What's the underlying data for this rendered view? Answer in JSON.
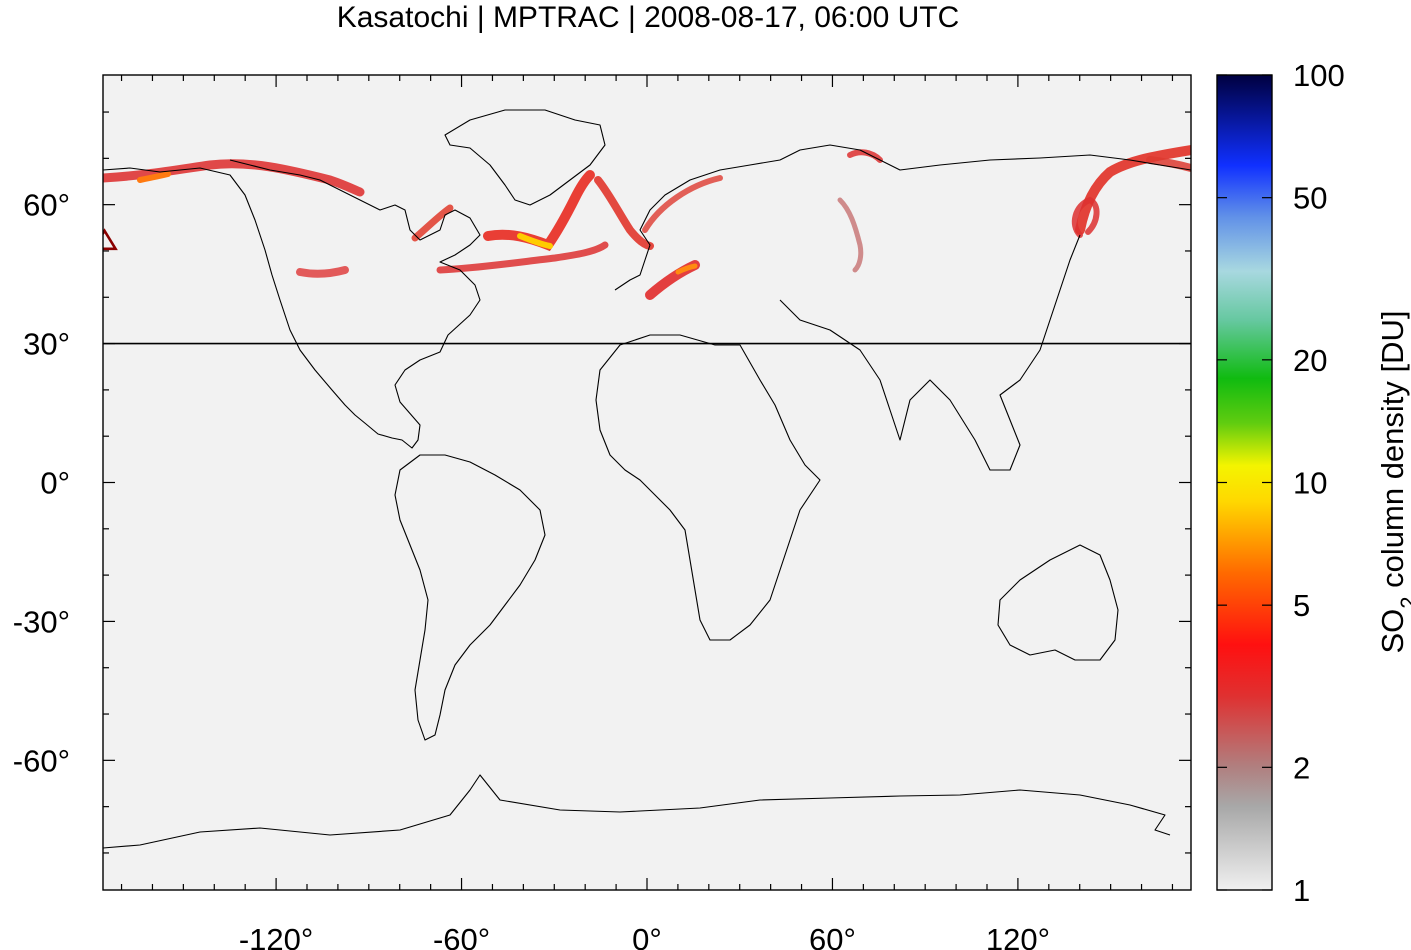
{
  "title": "Kasatochi | MPTRAC | 2008-08-17, 06:00 UTC",
  "map": {
    "projection": "equirectangular",
    "lon_range": [
      -176,
      176
    ],
    "lat_range": [
      -88,
      88
    ],
    "background": "#f2f2f2",
    "x_ticks": [
      {
        "value": -120,
        "label": "-120°"
      },
      {
        "value": -60,
        "label": "-60°"
      },
      {
        "value": 0,
        "label": "0°"
      },
      {
        "value": 60,
        "label": "60°"
      },
      {
        "value": 120,
        "label": "120°"
      }
    ],
    "y_ticks": [
      {
        "value": 60,
        "label": "60°"
      },
      {
        "value": 30,
        "label": "30°"
      },
      {
        "value": 0,
        "label": "0°"
      },
      {
        "value": -30,
        "label": "-30°"
      },
      {
        "value": -60,
        "label": "-60°"
      }
    ],
    "reference_line_lat": 30,
    "volcano_marker": {
      "name": "Kasatochi",
      "lon": -175.5,
      "lat": 52.2,
      "color": "#8b0000"
    }
  },
  "colorbar": {
    "label_main": "SO",
    "label_sub": "2",
    "label_rest": " column density [DU]",
    "scale": "log",
    "range": [
      1,
      100
    ],
    "ticks": [
      {
        "value": 1,
        "label": "1"
      },
      {
        "value": 2,
        "label": "2"
      },
      {
        "value": 5,
        "label": "5"
      },
      {
        "value": 10,
        "label": "10"
      },
      {
        "value": 20,
        "label": "20"
      },
      {
        "value": 50,
        "label": "50"
      },
      {
        "value": 100,
        "label": "100"
      }
    ],
    "stops": [
      {
        "value": 1,
        "color": "#f0f0f0"
      },
      {
        "value": 1.6,
        "color": "#a8a8a8"
      },
      {
        "value": 2,
        "color": "#b08080"
      },
      {
        "value": 3,
        "color": "#e03030"
      },
      {
        "value": 4,
        "color": "#ff1010"
      },
      {
        "value": 6,
        "color": "#ff6a00"
      },
      {
        "value": 9,
        "color": "#ffd800"
      },
      {
        "value": 11,
        "color": "#f4f400"
      },
      {
        "value": 14,
        "color": "#60cc10"
      },
      {
        "value": 18,
        "color": "#10bb10"
      },
      {
        "value": 25,
        "color": "#66c8a0"
      },
      {
        "value": 33,
        "color": "#a8d8e0"
      },
      {
        "value": 45,
        "color": "#6090e8"
      },
      {
        "value": 60,
        "color": "#1030ff"
      },
      {
        "value": 100,
        "color": "#000040"
      }
    ]
  }
}
